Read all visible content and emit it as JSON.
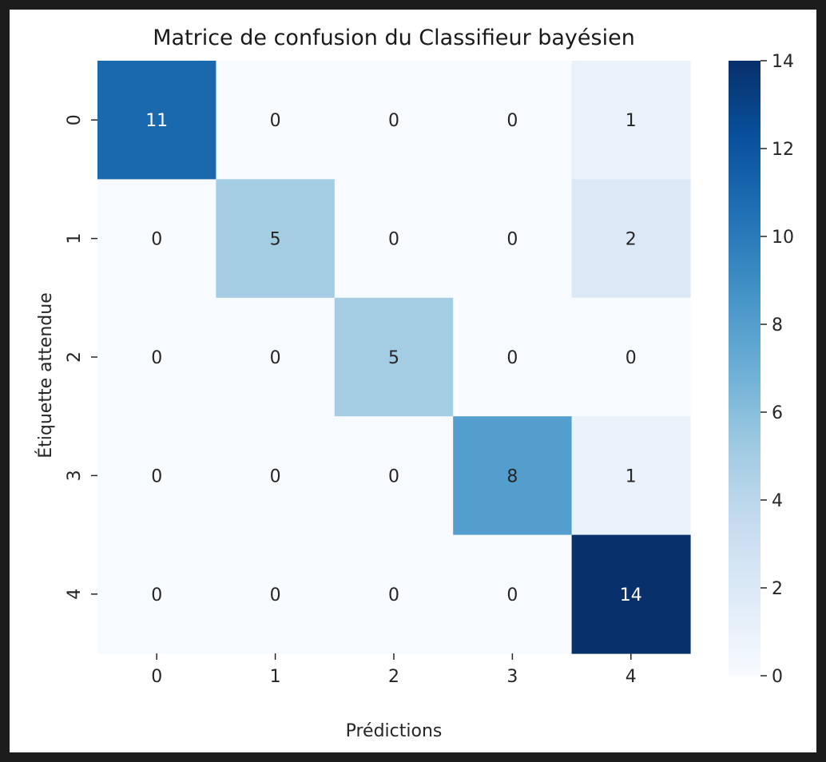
{
  "chart_data": {
    "type": "heatmap",
    "title": "Matrice de confusion du Classifieur bayésien",
    "xlabel": "Prédictions",
    "ylabel": "Étiquette attendue",
    "x_categories": [
      "0",
      "1",
      "2",
      "3",
      "4"
    ],
    "y_categories": [
      "0",
      "1",
      "2",
      "3",
      "4"
    ],
    "values": [
      [
        11,
        0,
        0,
        0,
        1
      ],
      [
        0,
        5,
        0,
        0,
        2
      ],
      [
        0,
        0,
        5,
        0,
        0
      ],
      [
        0,
        0,
        0,
        8,
        1
      ],
      [
        0,
        0,
        0,
        0,
        14
      ]
    ],
    "colormap": "Blues",
    "vmin": 0,
    "vmax": 14,
    "colorbar_ticks": [
      0,
      2,
      4,
      6,
      8,
      10,
      12,
      14
    ],
    "annotations": true
  }
}
